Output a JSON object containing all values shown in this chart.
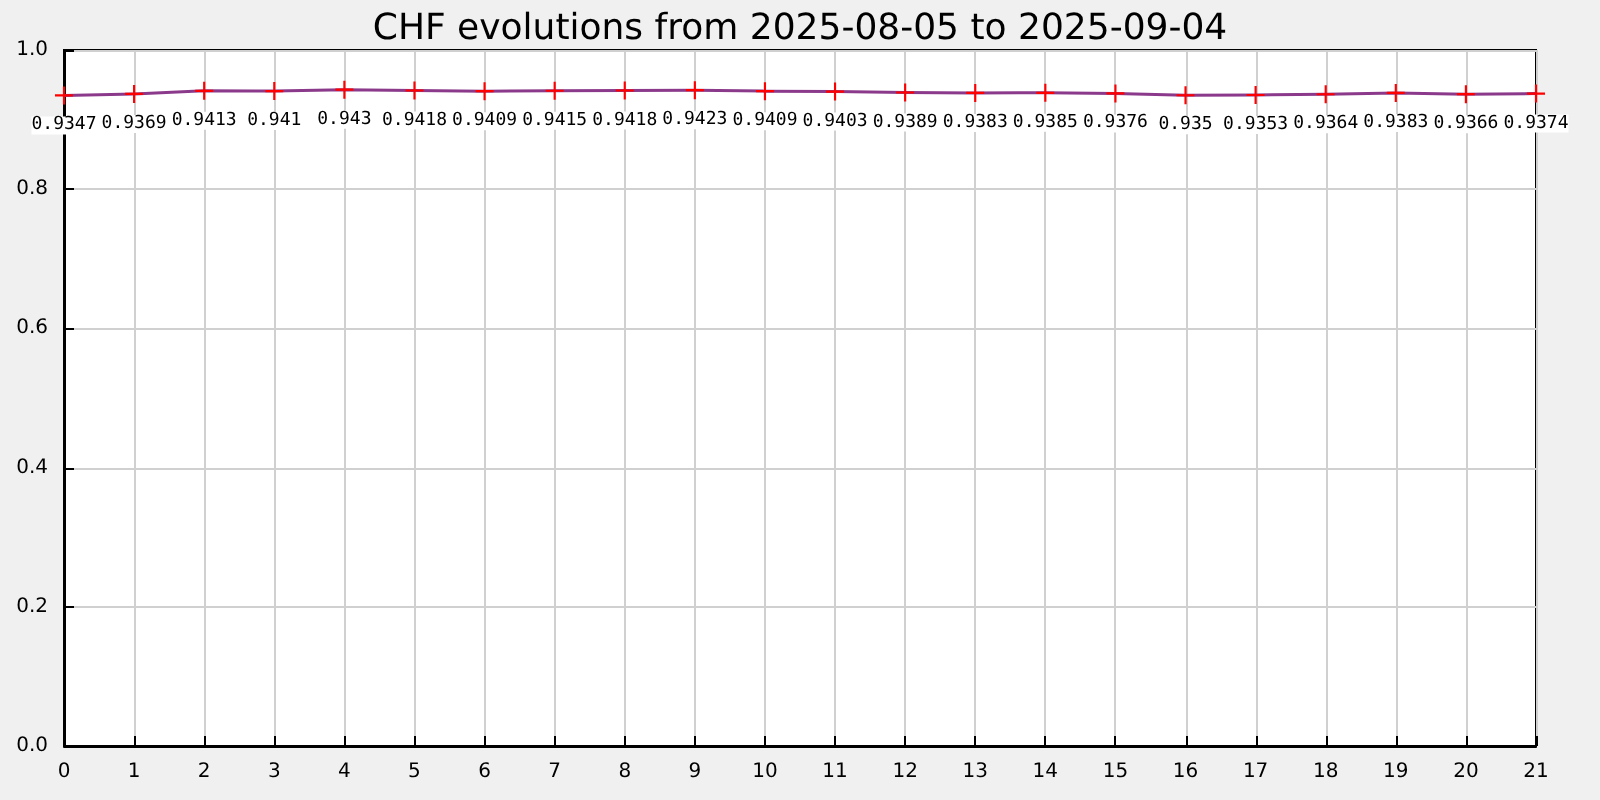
{
  "chart_data": {
    "type": "line",
    "title": "CHF evolutions from 2025-08-05 to 2025-09-04",
    "x": [
      0,
      1,
      2,
      3,
      4,
      5,
      6,
      7,
      8,
      9,
      10,
      11,
      12,
      13,
      14,
      15,
      16,
      17,
      18,
      19,
      20,
      21
    ],
    "series": [
      {
        "color": "#8b3a8b",
        "values": [
          0.9347,
          0.9369,
          0.9413,
          0.941,
          0.943,
          0.9418,
          0.9409,
          0.9415,
          0.9418,
          0.9423,
          0.9409,
          0.9403,
          0.9389,
          0.9383,
          0.9385,
          0.9376,
          0.935,
          0.9353,
          0.9364,
          0.9383,
          0.9366,
          0.9374
        ]
      }
    ],
    "xlim": [
      0,
      21
    ],
    "xticks": [
      0,
      1,
      2,
      3,
      4,
      5,
      6,
      7,
      8,
      9,
      10,
      11,
      12,
      13,
      14,
      15,
      16,
      17,
      18,
      19,
      20,
      21
    ],
    "ylim": [
      0,
      1
    ],
    "yticks": [
      {
        "value": 0,
        "label": "0.0"
      },
      {
        "value": 0.2,
        "label": "0.2"
      },
      {
        "value": 0.4,
        "label": "0.4"
      },
      {
        "value": 0.6,
        "label": "0.6"
      },
      {
        "value": 0.8,
        "label": "0.8"
      },
      {
        "value": 1,
        "label": "1.0"
      }
    ],
    "grid": true,
    "marker": "cross",
    "data_labels": true
  }
}
